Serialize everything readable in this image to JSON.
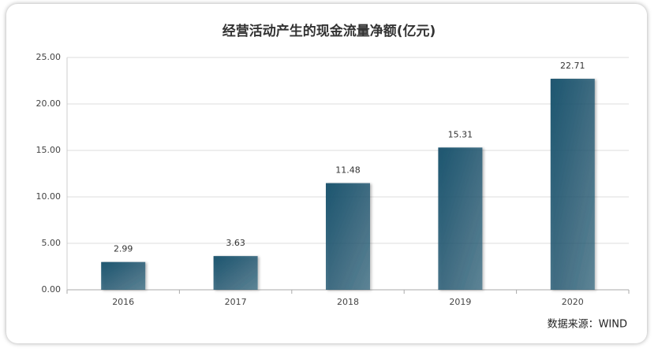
{
  "chart_data": {
    "type": "bar",
    "title": "经营活动产生的现金流量净额(亿元)",
    "categories": [
      "2016",
      "2017",
      "2018",
      "2019",
      "2020"
    ],
    "values": [
      2.99,
      3.63,
      11.48,
      15.31,
      22.71
    ],
    "color": "#1f5670",
    "ylim": [
      0,
      25
    ],
    "yticks": [
      {
        "value": 0,
        "label": "0.00"
      },
      {
        "value": 5,
        "label": "5.00"
      },
      {
        "value": 10,
        "label": "10.00"
      },
      {
        "value": 15,
        "label": "15.00"
      },
      {
        "value": 20,
        "label": "20.00"
      },
      {
        "value": 25,
        "label": "25.00"
      }
    ],
    "grid": true,
    "source": "数据来源：WIND"
  }
}
